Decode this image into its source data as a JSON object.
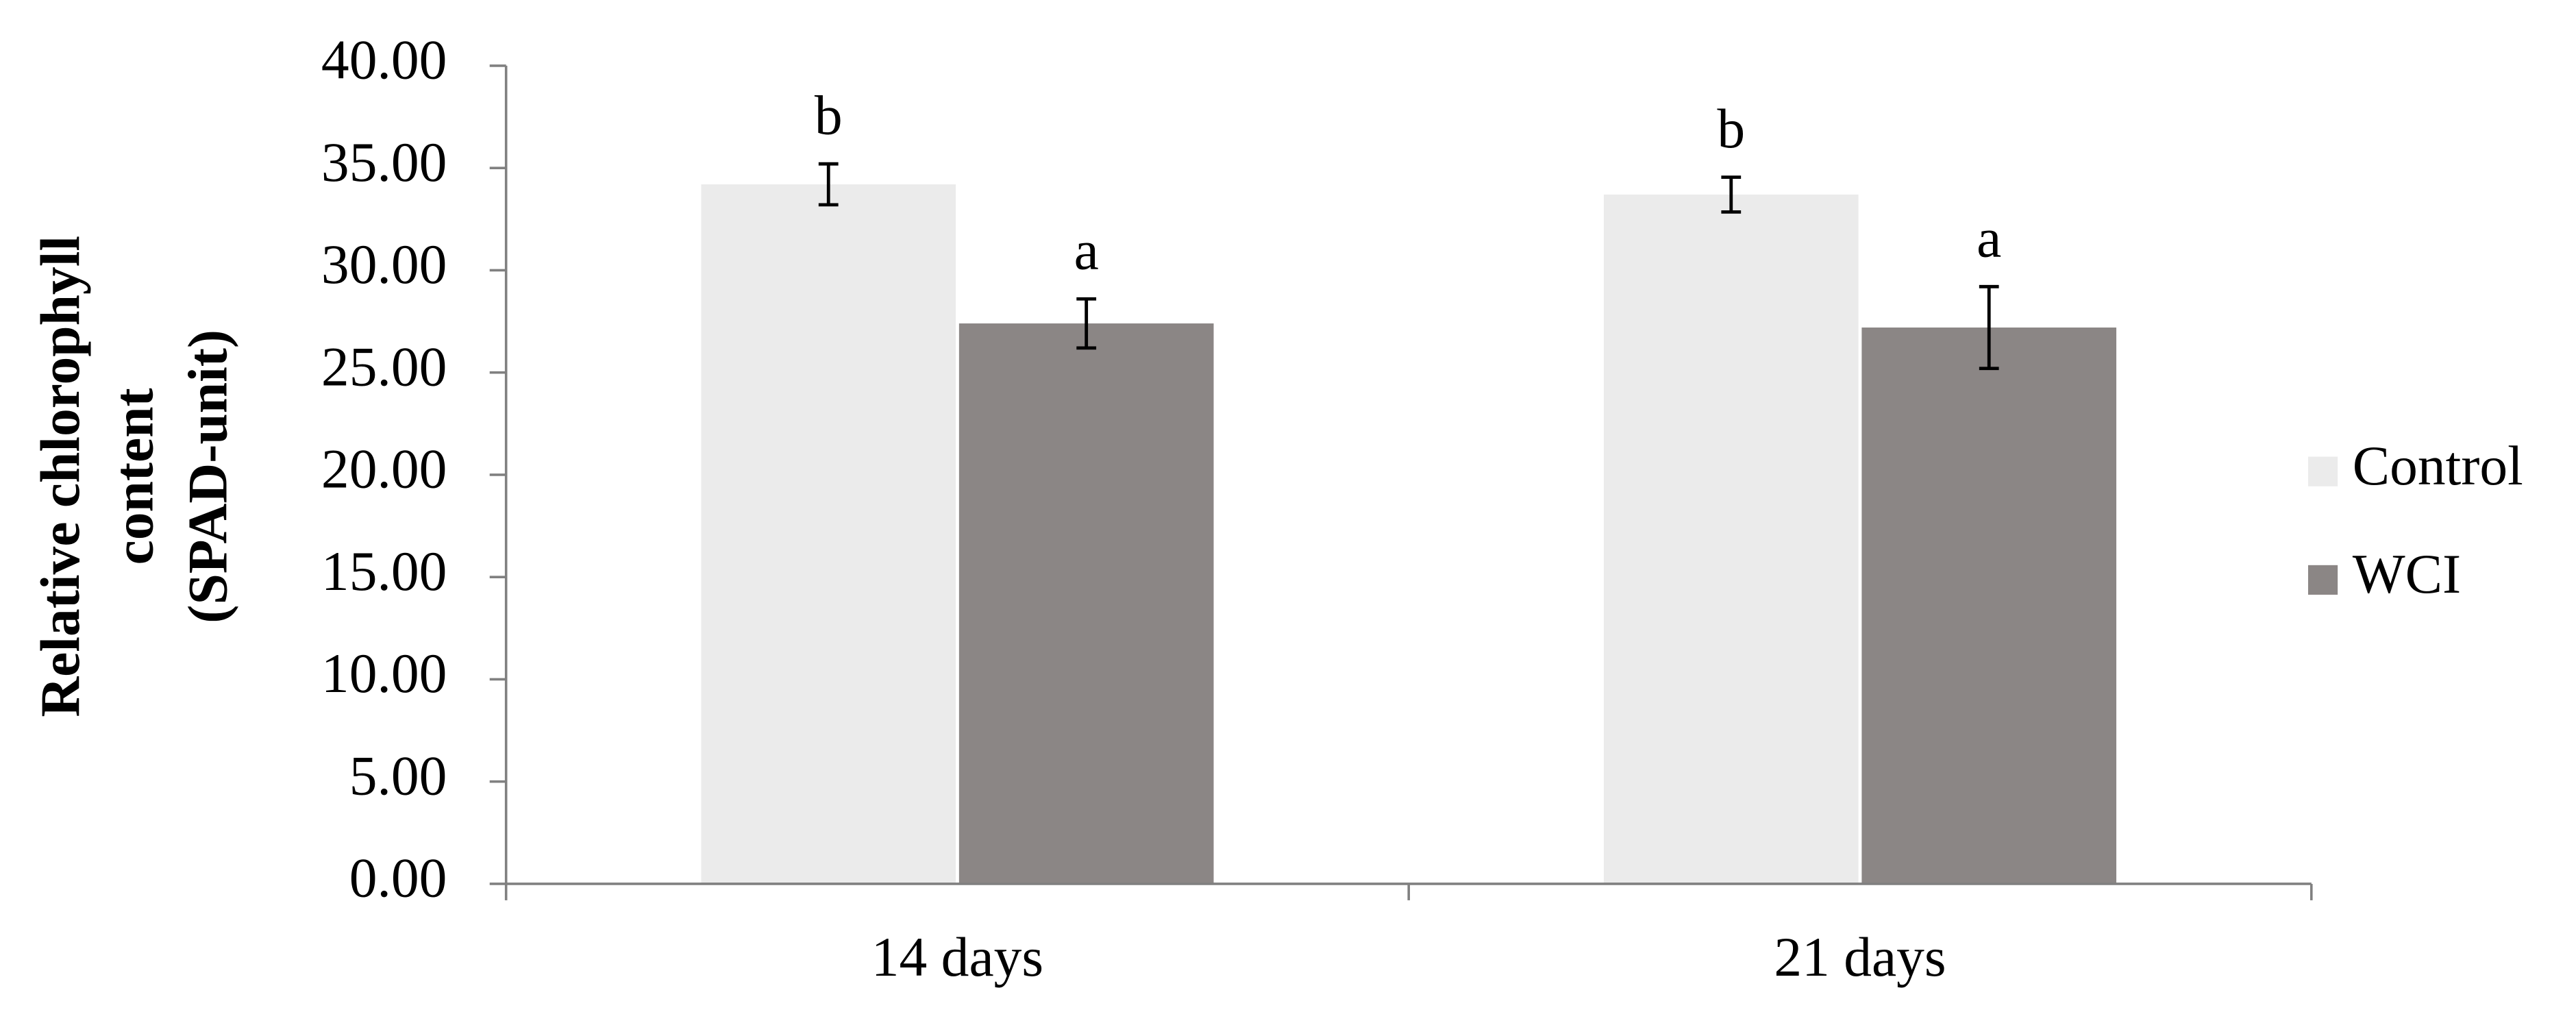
{
  "chart_data": {
    "type": "bar",
    "y_label": [
      "Relative chlorophyll",
      "content",
      "(SPAD-unit)"
    ],
    "categories": [
      "14 days",
      "21 days"
    ],
    "series": [
      {
        "name": "Control",
        "color": "#ebebeb",
        "values": [
          34.2,
          33.7
        ],
        "errors": [
          1.0,
          0.85
        ],
        "letters": [
          "b",
          "b"
        ]
      },
      {
        "name": "WCI",
        "color": "#8b8685",
        "values": [
          27.4,
          27.2
        ],
        "errors": [
          1.2,
          2.0
        ],
        "letters": [
          "a",
          "a"
        ]
      }
    ],
    "ylim": [
      0,
      40
    ],
    "yticks": [
      {
        "value": 0,
        "label": "0.00"
      },
      {
        "value": 5,
        "label": "5.00"
      },
      {
        "value": 10,
        "label": "10.00"
      },
      {
        "value": 15,
        "label": "15.00"
      },
      {
        "value": 20,
        "label": "20.00"
      },
      {
        "value": 25,
        "label": "25.00"
      },
      {
        "value": 30,
        "label": "30.00"
      },
      {
        "value": 35,
        "label": "35.00"
      },
      {
        "value": 40,
        "label": "40.00"
      }
    ],
    "grid": false,
    "legend": "right"
  }
}
